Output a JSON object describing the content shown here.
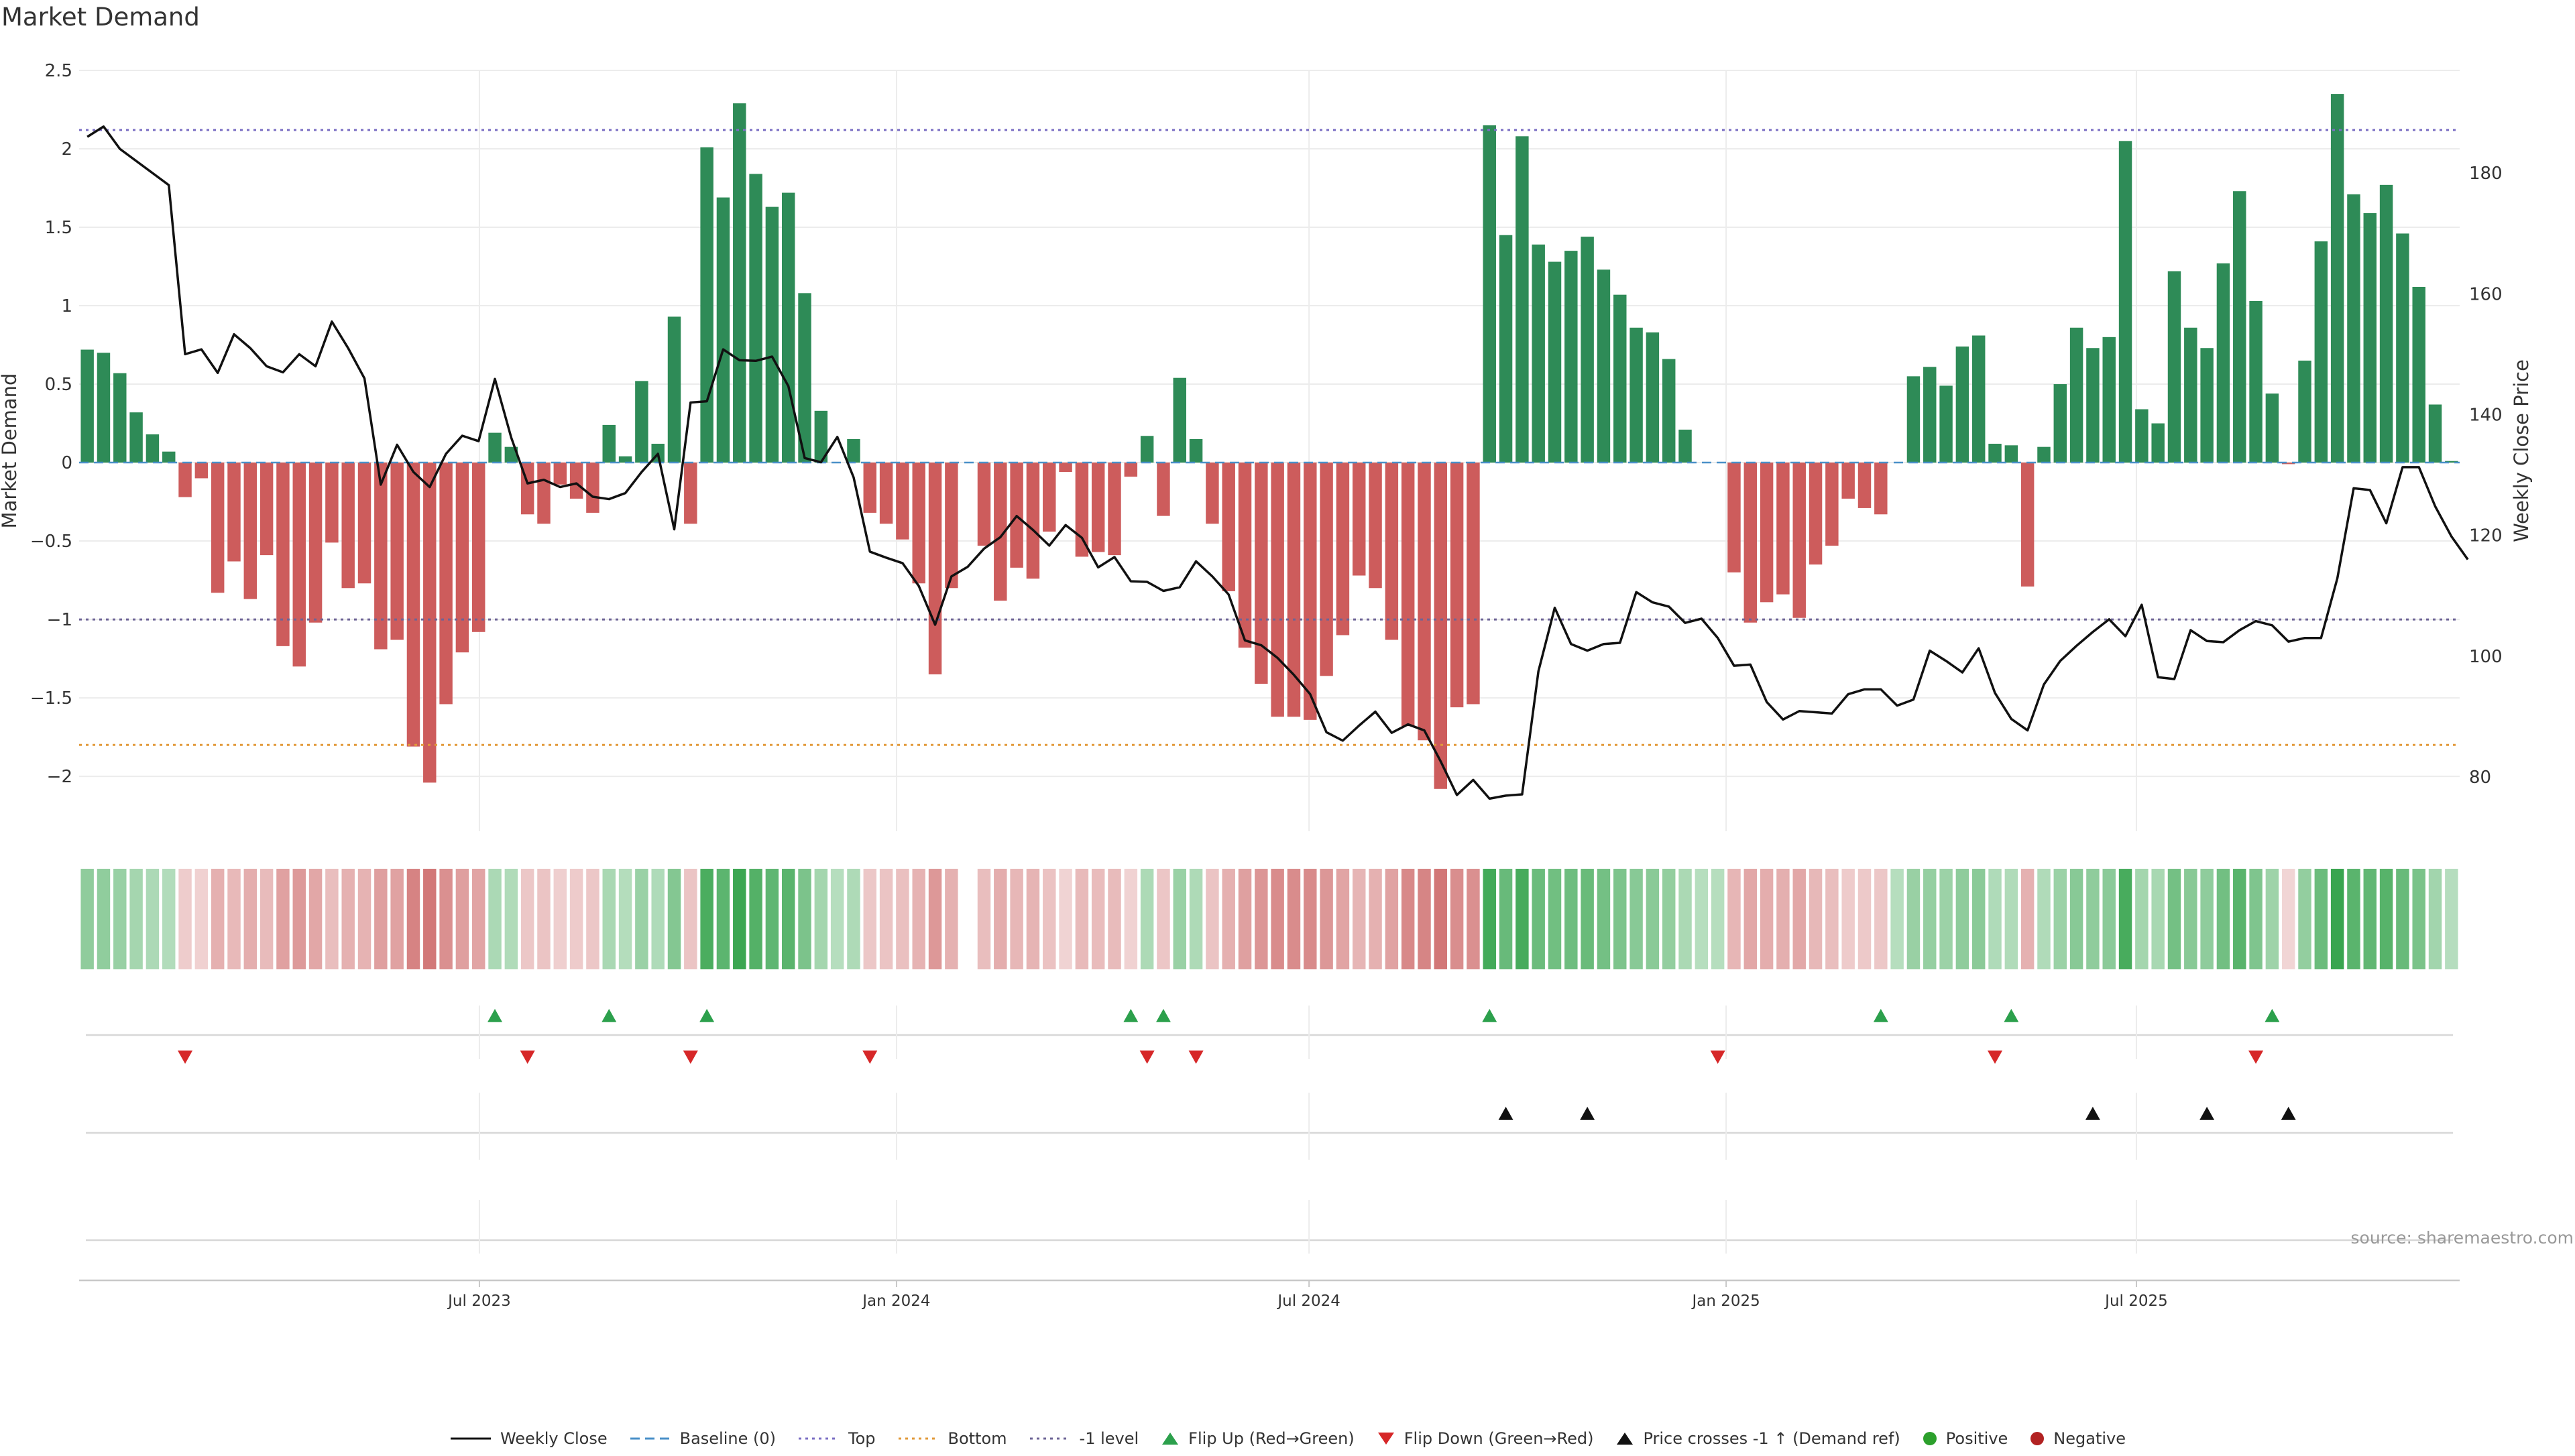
{
  "chart_data": {
    "type": "bar",
    "title": "Market Demand",
    "ylabel": "Market Demand",
    "y2label": "Weekly Close Price",
    "source": "source: sharemaestro.com",
    "ylim": [
      -2.35,
      2.5
    ],
    "yticks": [
      2.5,
      2,
      1.5,
      1,
      0.5,
      0,
      -0.5,
      -1,
      -1.5,
      -2
    ],
    "ytick_labels": [
      "2.5",
      "2",
      "1.5",
      "1",
      "0.5",
      "0",
      "−0.5",
      "−1",
      "−1.5",
      "−2"
    ],
    "y2lim": [
      71,
      197
    ],
    "y2ticks": [
      180,
      160,
      140,
      120,
      100,
      80
    ],
    "y2tick_labels": [
      "180",
      "160",
      "140",
      "120",
      "100",
      "80"
    ],
    "x_start": "2023-01-09",
    "x_end": "2025-11-17",
    "xticks": [
      {
        "date": "2023-07-01",
        "label": "Jul 2023"
      },
      {
        "date": "2024-01-01",
        "label": "Jan 2024"
      },
      {
        "date": "2024-07-01",
        "label": "Jul 2024"
      },
      {
        "date": "2025-01-01",
        "label": "Jan 2025"
      },
      {
        "date": "2025-07-01",
        "label": "Jul 2025"
      }
    ],
    "reference_lines": [
      {
        "name": "Top",
        "value": 2.12,
        "color": "#7b6fc4",
        "dash": "4,6"
      },
      {
        "name": "-1 level",
        "value": -1.0,
        "color": "#6e6496",
        "dash": "4,6"
      },
      {
        "name": "Bottom",
        "value": -1.8,
        "color": "#e29a3a",
        "dash": "4,6"
      },
      {
        "name": "Baseline (0)",
        "value": 0,
        "color": "#4a90c8",
        "dash": "14,8"
      }
    ],
    "bar_start_index": 0,
    "demand": [
      0.72,
      0.7,
      0.57,
      0.32,
      0.18,
      0.07,
      -0.22,
      -0.1,
      -0.83,
      -0.63,
      -0.87,
      -0.59,
      -1.17,
      -1.3,
      -1.02,
      -0.51,
      -0.8,
      -0.77,
      -1.19,
      -1.13,
      -1.81,
      -2.04,
      -1.54,
      -1.21,
      -1.08,
      0.19,
      0.1,
      -0.33,
      -0.39,
      -0.14,
      -0.23,
      -0.32,
      0.24,
      0.04,
      0.52,
      0.12,
      0.93,
      -0.39,
      2.01,
      1.69,
      2.29,
      1.84,
      1.63,
      1.72,
      1.08,
      0.33,
      0.0,
      0.15,
      -0.32,
      -0.39,
      -0.49,
      -0.77,
      -1.35,
      -0.8,
      0.0,
      -0.53,
      -0.88,
      -0.67,
      -0.74,
      -0.44,
      -0.06,
      -0.6,
      -0.57,
      -0.59,
      -0.09,
      0.17,
      -0.34,
      0.54,
      0.15,
      -0.39,
      -0.82,
      -1.18,
      -1.41,
      -1.62,
      -1.62,
      -1.64,
      -1.36,
      -1.1,
      -0.72,
      -0.8,
      -1.13,
      -1.68,
      -1.77,
      -2.08,
      -1.56,
      -1.54,
      2.15,
      1.45,
      2.08,
      1.39,
      1.28,
      1.35,
      1.44,
      1.23,
      1.07,
      0.86,
      0.83,
      0.66,
      0.21,
      0.0,
      0.0,
      -0.7,
      -1.02,
      -0.89,
      -0.84,
      -0.99,
      -0.65,
      -0.53,
      -0.23,
      -0.29,
      -0.33,
      0.0,
      0.55,
      0.61,
      0.49,
      0.74,
      0.81,
      0.12,
      0.11,
      -0.79,
      0.1,
      0.5,
      0.86,
      0.73,
      0.8,
      2.05,
      0.34,
      0.25,
      1.22,
      0.86,
      0.73,
      1.27,
      1.73,
      1.03,
      0.44,
      -0.01,
      0.65,
      1.41,
      2.35,
      1.71,
      1.59,
      1.77,
      1.46,
      1.12,
      0.37,
      0.01
    ],
    "weekly_close": [
      186,
      187.7,
      184,
      182,
      180,
      178,
      150,
      150.8,
      146.9,
      153.3,
      151,
      148,
      147,
      150,
      148,
      155.4,
      151,
      146,
      128.4,
      135,
      130.5,
      128,
      133.5,
      136.5,
      135.6,
      145.9,
      136.2,
      128.6,
      129.2,
      128,
      128.6,
      126.4,
      126,
      127,
      130.5,
      133.5,
      121,
      142,
      142.2,
      150.8,
      149,
      148.9,
      149.6,
      144.7,
      132.8,
      132.1,
      136.3,
      129.6,
      117.3,
      116.3,
      115.4,
      111.6,
      105.2,
      113.2,
      114.8,
      117.8,
      119.7,
      123.2,
      120.9,
      118.3,
      121.7,
      119.6,
      114.7,
      116.4,
      112.4,
      112.3,
      110.8,
      111.4,
      115.7,
      113.2,
      110.2,
      102.6,
      101.8,
      99.7,
      96.9,
      93.7,
      87.4,
      86,
      88.5,
      90.8,
      87.3,
      88.7,
      87.7,
      82.6,
      77,
      79.5,
      76.4,
      76.9,
      77.1,
      97.5,
      108,
      102,
      100.9,
      102,
      102.2,
      110.6,
      108.9,
      108.2,
      105.5,
      106.2,
      103,
      98.4,
      98.6,
      92.4,
      89.5,
      90.9,
      90.7,
      90.5,
      93.7,
      94.5,
      94.5,
      91.8,
      92.8,
      100.9,
      99.2,
      97.3,
      101.3,
      93.9,
      89.6,
      87.7,
      95.3,
      99.2,
      101.7,
      104,
      106.1,
      103.3,
      108.5,
      96.5,
      96.2,
      104.3,
      102.5,
      102.3,
      104.3,
      105.8,
      105.1,
      102.4,
      103,
      103,
      112.9,
      127.8,
      127.5,
      122,
      131.3,
      131.3,
      124.8,
      119.8,
      116
    ],
    "markers": {
      "flip_up": [
        25,
        32,
        38,
        64,
        66,
        86,
        110,
        118,
        134
      ],
      "flip_down": [
        6,
        27,
        37,
        48,
        65,
        68,
        100,
        117,
        133
      ],
      "price_cross_up": [
        87,
        92,
        123,
        130,
        135
      ]
    },
    "heat_gap_indices": [
      54
    ]
  },
  "legend": [
    {
      "key": "close",
      "label": "Weekly Close",
      "color": "#111111"
    },
    {
      "key": "baseline",
      "label": "Baseline (0)",
      "color": "#4a90c8"
    },
    {
      "key": "top",
      "label": "Top",
      "color": "#7b6fc4"
    },
    {
      "key": "bottom",
      "label": "Bottom",
      "color": "#e29a3a"
    },
    {
      "key": "minus1",
      "label": "-1 level",
      "color": "#6e6496"
    },
    {
      "key": "flipup",
      "label": "Flip Up (Red→Green)",
      "color": "#2ca04c"
    },
    {
      "key": "flipdown",
      "label": "Flip Down (Green→Red)",
      "color": "#d62728"
    },
    {
      "key": "cross",
      "label": "Price crosses -1 ↑ (Demand ref)",
      "color": "#111111"
    },
    {
      "key": "positive",
      "label": "Positive",
      "color": "#2ca02c"
    },
    {
      "key": "negative",
      "label": "Negative",
      "color": "#b22222"
    }
  ],
  "colors": {
    "positive": "#2e8b57",
    "negative": "#cd5c5c",
    "grid": "#ececec",
    "axis": "#c8c8c8",
    "text": "#333333"
  }
}
